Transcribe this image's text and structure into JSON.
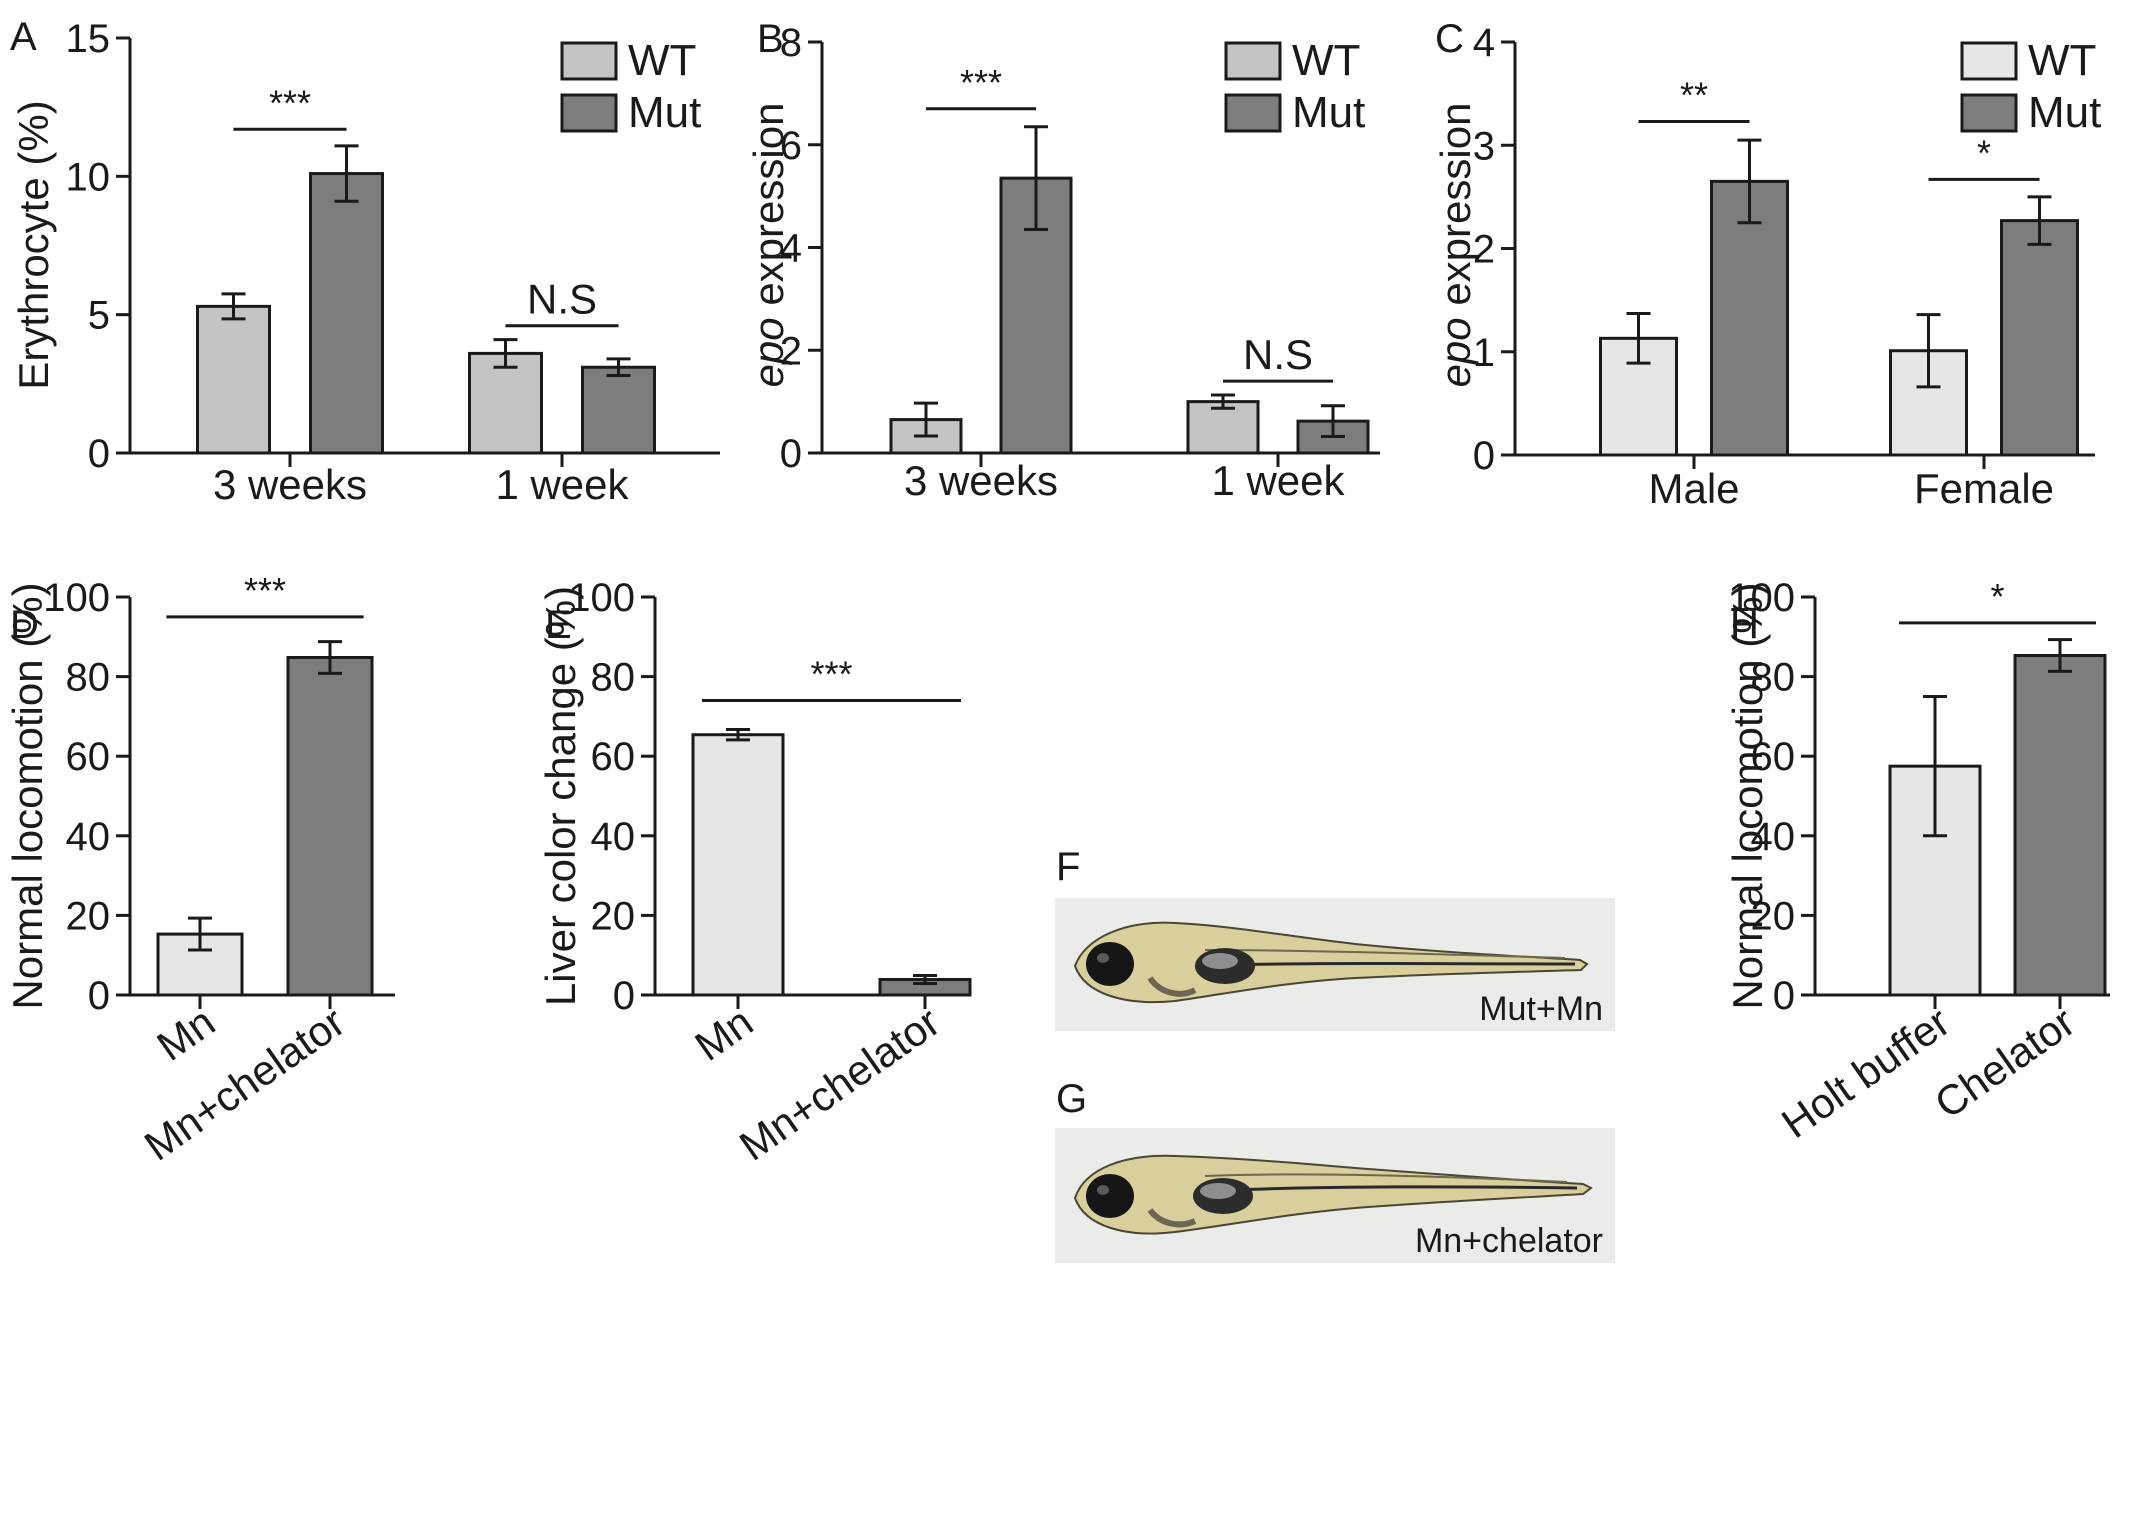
{
  "colors": {
    "wt": "#c4c4c4",
    "mut": "#7d7d7d",
    "light": "#e6e6e6",
    "photo_bg": "#ebebe9",
    "fish_body": "#d8cf9c"
  },
  "chart_data": [
    {
      "panel": "A",
      "type": "bar",
      "ylabel": "Erythrocyte (%)",
      "ylim": [
        0,
        15
      ],
      "yticks": [
        0,
        5,
        10,
        15
      ],
      "categories": [
        "3 weeks",
        "1 week"
      ],
      "series": [
        {
          "name": "WT",
          "color_key": "wt",
          "values": [
            5.3,
            3.6
          ],
          "errors": [
            0.45,
            0.5
          ]
        },
        {
          "name": "Mut",
          "color_key": "mut",
          "values": [
            10.1,
            3.1
          ],
          "errors": [
            1.0,
            0.3
          ]
        }
      ],
      "legend": "top-right",
      "significance": [
        {
          "category": 0,
          "label": "***",
          "y": 11.7
        },
        {
          "category": 1,
          "label": "N.S",
          "y": 4.6
        }
      ]
    },
    {
      "panel": "B",
      "type": "bar",
      "ylabel_italic": "epo",
      "ylabel_rest": " expression",
      "ylim": [
        0,
        8
      ],
      "yticks": [
        0,
        2,
        4,
        6,
        8
      ],
      "categories": [
        "3 weeks",
        "1 week"
      ],
      "series": [
        {
          "name": "WT",
          "color_key": "wt",
          "values": [
            0.65,
            1.0
          ],
          "errors": [
            0.32,
            0.13
          ]
        },
        {
          "name": "Mut",
          "color_key": "mut",
          "values": [
            5.35,
            0.62
          ],
          "errors": [
            1.0,
            0.3
          ]
        }
      ],
      "legend": "top-right",
      "significance": [
        {
          "category": 0,
          "label": "***",
          "y": 6.7
        },
        {
          "category": 1,
          "label": "N.S",
          "y": 1.4
        }
      ]
    },
    {
      "panel": "C",
      "type": "bar",
      "ylabel_italic": "epo",
      "ylabel_rest": " expression",
      "ylim": [
        0,
        4
      ],
      "yticks": [
        0,
        1,
        2,
        3,
        4
      ],
      "categories": [
        "Male",
        "Female"
      ],
      "series": [
        {
          "name": "WT",
          "color_key": "light",
          "values": [
            1.13,
            1.01
          ],
          "errors": [
            0.24,
            0.35
          ]
        },
        {
          "name": "Mut",
          "color_key": "mut",
          "values": [
            2.65,
            2.27
          ],
          "errors": [
            0.4,
            0.23
          ]
        }
      ],
      "legend": "top-right",
      "significance": [
        {
          "category": 0,
          "label": "**",
          "y": 3.23
        },
        {
          "category": 1,
          "label": "*",
          "y": 2.67
        }
      ]
    },
    {
      "panel": "D",
      "type": "bar",
      "ylabel": "Normal locomotion (%)",
      "ylim": [
        0,
        100
      ],
      "yticks": [
        0,
        20,
        40,
        60,
        80,
        100
      ],
      "categories": [
        "Mn",
        "Mn+chelator"
      ],
      "values": [
        15.3,
        84.8
      ],
      "errors": [
        4.0,
        4.0
      ],
      "color_keys": [
        "light",
        "mut"
      ],
      "significance": [
        {
          "label": "***",
          "y": 95
        }
      ]
    },
    {
      "panel": "E",
      "type": "bar",
      "ylabel": "Liver color change (%)",
      "ylim": [
        0,
        100
      ],
      "yticks": [
        0,
        20,
        40,
        60,
        80,
        100
      ],
      "categories": [
        "Mn",
        "Mn+chelator"
      ],
      "values": [
        65.4,
        3.9
      ],
      "errors": [
        1.3,
        1.0
      ],
      "color_keys": [
        "light",
        "mut"
      ],
      "significance": [
        {
          "label": "***",
          "y": 74
        }
      ]
    },
    {
      "panel": "H",
      "type": "bar",
      "ylabel": "Normal locomotion (%)",
      "ylim": [
        0,
        100
      ],
      "yticks": [
        0,
        20,
        40,
        60,
        80,
        100
      ],
      "categories": [
        "Holt buffer",
        "Chelator"
      ],
      "values": [
        57.5,
        85.3
      ],
      "errors": [
        17.5,
        4.0
      ],
      "color_keys": [
        "light",
        "mut"
      ],
      "significance": [
        {
          "label": "*",
          "y": 93.5
        }
      ]
    }
  ],
  "photos": [
    {
      "panel": "F",
      "caption": "Mut+Mn"
    },
    {
      "panel": "G",
      "caption": "Mn+chelator"
    }
  ]
}
